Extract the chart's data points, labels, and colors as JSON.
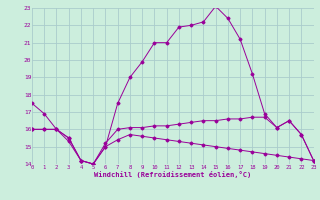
{
  "xlabel": "Windchill (Refroidissement éolien,°C)",
  "bg_color": "#cceedd",
  "grid_color": "#aacccc",
  "line_color": "#990099",
  "x_hours": [
    0,
    1,
    2,
    3,
    4,
    5,
    6,
    7,
    8,
    9,
    10,
    11,
    12,
    13,
    14,
    15,
    16,
    17,
    18,
    19,
    20,
    21,
    22,
    23
  ],
  "temp_line": [
    17.5,
    16.9,
    16.0,
    15.3,
    14.2,
    14.0,
    15.0,
    17.5,
    19.0,
    19.9,
    21.0,
    21.0,
    21.9,
    22.0,
    22.2,
    23.1,
    22.4,
    21.2,
    19.2,
    16.9,
    16.1,
    16.5,
    15.7,
    14.2
  ],
  "windchill_line": [
    16.0,
    16.0,
    16.0,
    15.5,
    14.2,
    14.0,
    15.2,
    16.0,
    16.1,
    16.1,
    16.2,
    16.2,
    16.3,
    16.4,
    16.5,
    16.5,
    16.6,
    16.6,
    16.7,
    16.7,
    16.1,
    16.5,
    15.7,
    14.2
  ],
  "wc_lower_line": [
    16.0,
    16.0,
    16.0,
    15.5,
    14.2,
    14.0,
    15.0,
    15.4,
    15.7,
    15.6,
    15.5,
    15.4,
    15.3,
    15.2,
    15.1,
    15.0,
    14.9,
    14.8,
    14.7,
    14.6,
    14.5,
    14.4,
    14.3,
    14.2
  ],
  "ylim": [
    14,
    23
  ],
  "xlim": [
    0,
    23
  ],
  "yticks": [
    14,
    15,
    16,
    17,
    18,
    19,
    20,
    21,
    22,
    23
  ],
  "xticks": [
    0,
    1,
    2,
    3,
    4,
    5,
    6,
    7,
    8,
    9,
    10,
    11,
    12,
    13,
    14,
    15,
    16,
    17,
    18,
    19,
    20,
    21,
    22,
    23
  ]
}
